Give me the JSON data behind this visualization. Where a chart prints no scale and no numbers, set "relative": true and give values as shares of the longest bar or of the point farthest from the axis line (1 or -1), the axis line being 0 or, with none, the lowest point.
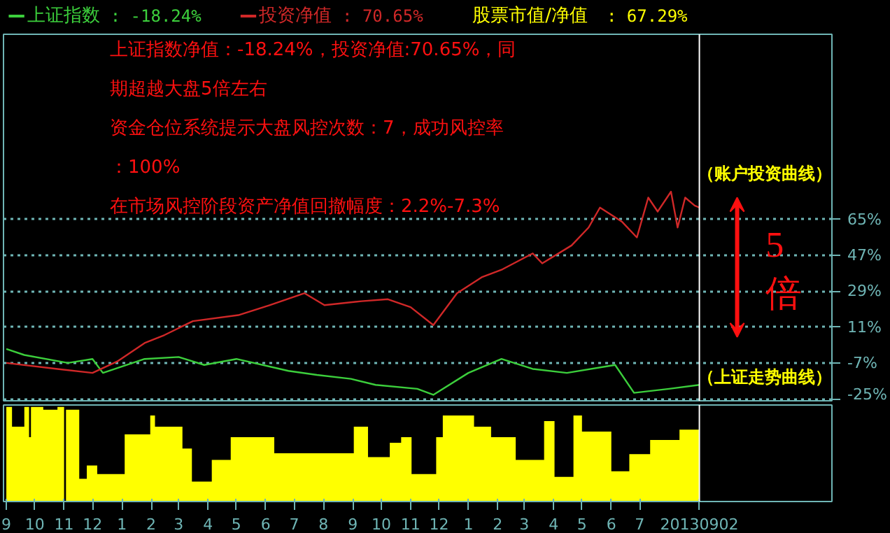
{
  "chart_data": [
    {
      "type": "line",
      "legend": "top left",
      "tick_labels": "y",
      "grid": "y",
      "marker": "none",
      "line_style": "solid",
      "xlim": [
        "2011-08-29",
        "2014-01-20"
      ],
      "ylim": [
        -26,
        158
      ],
      "yticks": [
        {
          "value": 65,
          "label": "65%"
        },
        {
          "value": 47,
          "label": "47%"
        },
        {
          "value": 29,
          "label": "29%"
        },
        {
          "value": 11,
          "label": "11%"
        },
        {
          "value": -7,
          "label": "-7%"
        },
        {
          "value": -25,
          "label": "-25%"
        }
      ],
      "series": [
        {
          "name": "上证指数",
          "color": "#3ccf3c",
          "x": [
            "2011-09-01",
            "2011-09-20",
            "2011-11-05",
            "2011-12-01",
            "2011-12-12",
            "2012-01-25",
            "2012-03-01",
            "2012-03-28",
            "2012-05-01",
            "2012-06-25",
            "2012-07-25",
            "2012-08-30",
            "2012-09-25",
            "2012-11-08",
            "2012-11-25",
            "2013-01-01",
            "2013-02-05",
            "2013-03-10",
            "2013-04-15",
            "2013-06-05",
            "2013-06-25",
            "2013-08-01",
            "2013-09-02"
          ],
          "values": [
            0,
            -3,
            -7,
            -5,
            -12,
            -5,
            -4,
            -8,
            -5,
            -11,
            -13,
            -15,
            -18,
            -20,
            -23,
            -12,
            -5,
            -10,
            -12,
            -8,
            -22,
            -20,
            -18
          ]
        },
        {
          "name": "投资净值",
          "color": "#d02828",
          "x": [
            "2011-09-01",
            "2011-10-25",
            "2011-12-01",
            "2011-12-28",
            "2012-01-25",
            "2012-02-15",
            "2012-03-16",
            "2012-05-03",
            "2012-06-05",
            "2012-07-12",
            "2012-08-02",
            "2012-09-10",
            "2012-10-08",
            "2012-11-01",
            "2012-11-25",
            "2012-12-20",
            "2013-01-15",
            "2013-02-06",
            "2013-03-10",
            "2013-03-20",
            "2013-04-20",
            "2013-05-08",
            "2013-05-20",
            "2013-06-12",
            "2013-06-28",
            "2013-07-10",
            "2013-07-20",
            "2013-08-03",
            "2013-08-10",
            "2013-08-18",
            "2013-08-28",
            "2013-09-02"
          ],
          "values": [
            -7,
            -10,
            -12,
            -6,
            3,
            7,
            14,
            17,
            22,
            28,
            22,
            24,
            25,
            21,
            12,
            28,
            36,
            40,
            48,
            43,
            52,
            61,
            71,
            64,
            56,
            76,
            69,
            79,
            61,
            76,
            72,
            71
          ]
        }
      ],
      "ref_lines": [
        {
          "axis": "x",
          "value": "2013-09-02",
          "color": "#ffffff"
        }
      ],
      "annotations": [
        ":  -18.24%",
        ":  70.65%",
        "上证指数净值：-18.24%，投资净值:70.65%，同",
        "期超越大盘5倍左右",
        "资金仓位系统提示大盘风控次数：7，成功风控率",
        "：100%",
        "在市场风控阶段资产净值回撤幅度：2.2%-7.3%",
        "（账户投资曲线）",
        "5倍",
        "（上证走势曲线）"
      ]
    },
    {
      "type": "area",
      "relative": true,
      "tick_labels": "x",
      "xlim": [
        "2011-08-29",
        "2014-01-20"
      ],
      "xticks": [
        {
          "value": "2011-09-01",
          "label": "9"
        },
        {
          "value": "2011-10-01",
          "label": "10"
        },
        {
          "value": "2011-11-01",
          "label": "11"
        },
        {
          "value": "2011-12-01",
          "label": "12"
        },
        {
          "value": "2012-01-01",
          "label": "1"
        },
        {
          "value": "2012-02-01",
          "label": "2"
        },
        {
          "value": "2012-03-01",
          "label": "3"
        },
        {
          "value": "2012-04-01",
          "label": "4"
        },
        {
          "value": "2012-05-01",
          "label": "5"
        },
        {
          "value": "2012-06-01",
          "label": "6"
        },
        {
          "value": "2012-07-01",
          "label": "7"
        },
        {
          "value": "2012-08-01",
          "label": "8"
        },
        {
          "value": "2012-09-01",
          "label": "9"
        },
        {
          "value": "2012-10-01",
          "label": "10"
        },
        {
          "value": "2012-11-01",
          "label": "11"
        },
        {
          "value": "2012-12-01",
          "label": "12"
        },
        {
          "value": "2013-01-01",
          "label": "1"
        },
        {
          "value": "2013-02-01",
          "label": "2"
        },
        {
          "value": "2013-03-01",
          "label": "3"
        },
        {
          "value": "2013-04-01",
          "label": "4"
        },
        {
          "value": "2013-05-01",
          "label": "5"
        },
        {
          "value": "2013-06-01",
          "label": "6"
        },
        {
          "value": "2013-07-01",
          "label": "7"
        },
        {
          "value": "2013-09-02",
          "label": "20130902"
        }
      ],
      "series": [
        {
          "name": "股票市值/净值",
          "color": "#ffff00",
          "x": [
            "2011-09-01",
            "2011-09-07",
            "2011-09-20",
            "2011-09-25",
            "2011-09-27",
            "2011-10-10",
            "2011-10-25",
            "2011-11-01",
            "2011-11-03",
            "2011-11-17",
            "2011-11-25",
            "2011-12-06",
            "2012-01-04",
            "2012-01-31",
            "2012-02-05",
            "2012-03-05",
            "2012-03-15",
            "2012-04-05",
            "2012-04-25",
            "2012-06-10",
            "2012-09-02",
            "2012-09-17",
            "2012-10-10",
            "2012-10-22",
            "2012-11-02",
            "2012-11-28",
            "2012-12-05",
            "2013-01-07",
            "2013-01-25",
            "2013-02-20",
            "2013-03-22",
            "2013-04-02",
            "2013-04-22",
            "2013-05-01",
            "2013-06-01",
            "2013-06-20",
            "2013-07-12",
            "2013-08-12",
            "2013-09-02"
          ],
          "values": [
            1.0,
            0.79,
            1.0,
            0.68,
            1.0,
            0.97,
            1.0,
            0,
            0.97,
            0.24,
            0.38,
            0.29,
            0.71,
            0.91,
            0.79,
            0.56,
            0.21,
            0.44,
            0.68,
            0.51,
            0.79,
            0.47,
            0.62,
            0.68,
            0.29,
            0.68,
            0.91,
            0.79,
            0.68,
            0.44,
            0.85,
            0.26,
            0.91,
            0.74,
            0.32,
            0.5,
            0.65,
            0.76,
            0.76
          ]
        }
      ],
      "ref_lines": [
        {
          "axis": "x",
          "value": "2013-09-02",
          "color": "#ffffff"
        }
      ],
      "annotations": [
        ":  67.29%"
      ]
    }
  ]
}
